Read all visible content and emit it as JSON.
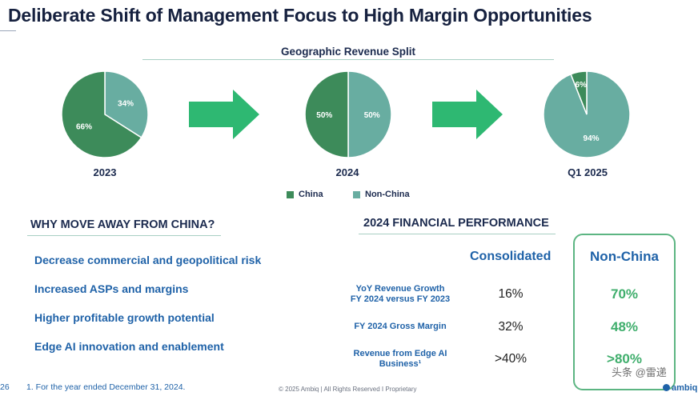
{
  "title": "Deliberate Shift of Management Focus to High Margin Opportunities",
  "colors": {
    "china": "#3d8b5a",
    "non_china": "#68ada1",
    "arrow": "#2eb872",
    "accent_blue": "#1f62a8",
    "highlight_green": "#3fae6c"
  },
  "chart_data": {
    "type": "pie",
    "title": "Geographic Revenue Split",
    "legend": [
      "China",
      "Non-China"
    ],
    "legend_placement": "bottom",
    "pies": [
      {
        "label": "2023",
        "slices": [
          {
            "name": "China",
            "value": 66,
            "text": "66%"
          },
          {
            "name": "Non-China",
            "value": 34,
            "text": "34%"
          }
        ]
      },
      {
        "label": "2024",
        "slices": [
          {
            "name": "China",
            "value": 50,
            "text": "50%"
          },
          {
            "name": "Non-China",
            "value": 50,
            "text": "50%"
          }
        ]
      },
      {
        "label": "Q1 2025",
        "slices": [
          {
            "name": "China",
            "value": 6,
            "text": "6%"
          },
          {
            "name": "Non-China",
            "value": 94,
            "text": "94%"
          }
        ]
      }
    ]
  },
  "why": {
    "title": "WHY MOVE AWAY FROM CHINA?",
    "items": [
      "Decrease commercial and geopolitical risk",
      "Increased ASPs and margins",
      "Higher profitable growth potential",
      "Edge AI innovation and enablement"
    ]
  },
  "financial": {
    "title": "2024 FINANCIAL PERFORMANCE",
    "col_consolidated": "Consolidated",
    "col_non_china": "Non-China",
    "rows": [
      {
        "label_line1": "YoY Revenue Growth",
        "label_line2": "FY 2024 versus FY 2023",
        "consolidated": "16%",
        "non_china": "70%"
      },
      {
        "label_line1": "FY 2024 Gross Margin",
        "label_line2": "",
        "consolidated": "32%",
        "non_china": "48%"
      },
      {
        "label_line1": "Revenue from Edge AI",
        "label_line2": "Business¹",
        "consolidated": ">40%",
        "non_china": ">80%"
      }
    ]
  },
  "footer": {
    "page_number": "26",
    "footnote": "1. For the year ended December 31, 2024.",
    "copyright": "© 2025 Ambiq  |  All Rights Reserved I Proprietary",
    "logo_text": "ambiq",
    "watermark": "头条 @雷递"
  }
}
